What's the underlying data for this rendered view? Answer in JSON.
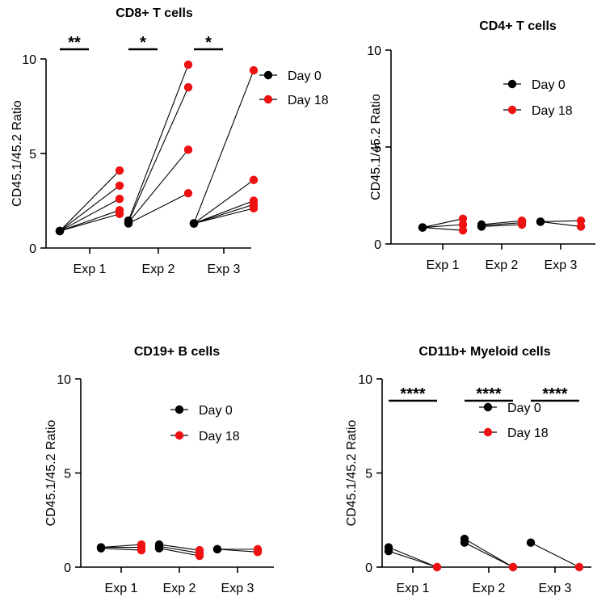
{
  "chart_data": [
    {
      "type": "scatter",
      "title": "CD8+ T cells",
      "ylabel": "CD45.1/45.2 Ratio",
      "categories": [
        "Exp 1",
        "Exp 2",
        "Exp 3"
      ],
      "ylim": [
        0,
        10
      ],
      "yticks": [
        "0",
        "5",
        "10"
      ],
      "legend": [
        "Day 0",
        "Day 18"
      ],
      "pairs": [
        [
          [
            0.9,
            4.1
          ],
          [
            0.9,
            3.3
          ],
          [
            0.9,
            2.6
          ],
          [
            0.9,
            2.0
          ],
          [
            0.9,
            1.8
          ]
        ],
        [
          [
            1.45,
            9.7
          ],
          [
            1.4,
            8.5
          ],
          [
            1.35,
            5.2
          ],
          [
            1.3,
            2.9
          ]
        ],
        [
          [
            1.3,
            9.4
          ],
          [
            1.3,
            3.6
          ],
          [
            1.3,
            2.5
          ],
          [
            1.3,
            2.3
          ],
          [
            1.3,
            2.1
          ]
        ]
      ],
      "significance": [
        "**",
        "*",
        "*"
      ],
      "colors": {
        "day0": "#000000",
        "day18": "#ee1111"
      }
    },
    {
      "type": "scatter",
      "title": "CD4+ T cells",
      "ylabel": "CD45.1/45.2 Ratio",
      "categories": [
        "Exp 1",
        "Exp 2",
        "Exp 3"
      ],
      "ylim": [
        0,
        10
      ],
      "yticks": [
        "0",
        "5",
        "10"
      ],
      "legend": [
        "Day 0",
        "Day 18"
      ],
      "pairs": [
        [
          [
            0.85,
            1.3
          ],
          [
            0.85,
            1.0
          ],
          [
            0.85,
            0.7
          ]
        ],
        [
          [
            1.0,
            1.2
          ],
          [
            0.95,
            1.1
          ],
          [
            0.9,
            1.0
          ]
        ],
        [
          [
            1.15,
            1.2
          ],
          [
            1.15,
            0.9
          ]
        ]
      ],
      "significance": [],
      "colors": {
        "day0": "#000000",
        "day18": "#ee1111"
      }
    },
    {
      "type": "scatter",
      "title": "CD19+ B cells",
      "ylabel": "CD45.1/45.2 Ratio",
      "categories": [
        "Exp 1",
        "Exp 2",
        "Exp 3"
      ],
      "ylim": [
        0,
        10
      ],
      "yticks": [
        "0",
        "5",
        "10"
      ],
      "legend": [
        "Day 0",
        "Day 18"
      ],
      "pairs": [
        [
          [
            1.05,
            1.2
          ],
          [
            1.05,
            1.05
          ],
          [
            1.0,
            0.9
          ]
        ],
        [
          [
            1.2,
            0.9
          ],
          [
            1.1,
            0.75
          ],
          [
            1.0,
            0.6
          ]
        ],
        [
          [
            0.95,
            0.95
          ],
          [
            0.95,
            0.8
          ]
        ]
      ],
      "significance": [],
      "colors": {
        "day0": "#000000",
        "day18": "#ee1111"
      }
    },
    {
      "type": "scatter",
      "title": "CD11b+ Myeloid cells",
      "ylabel": "CD45.1/45.2 Ratio",
      "categories": [
        "Exp 1",
        "Exp 2",
        "Exp 3"
      ],
      "ylim": [
        0,
        10
      ],
      "yticks": [
        "0",
        "5",
        "10"
      ],
      "legend": [
        "Day 0",
        "Day 18"
      ],
      "pairs": [
        [
          [
            1.05,
            0.0
          ],
          [
            0.85,
            0.0
          ]
        ],
        [
          [
            1.5,
            0.0
          ],
          [
            1.3,
            0.0
          ]
        ],
        [
          [
            1.3,
            0.0
          ]
        ]
      ],
      "significance": [
        "****",
        "****",
        "****"
      ],
      "colors": {
        "day0": "#000000",
        "day18": "#ee1111"
      }
    }
  ]
}
